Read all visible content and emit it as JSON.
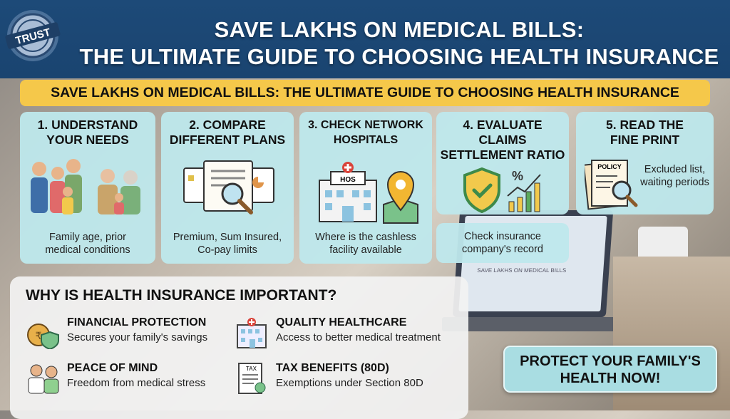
{
  "header": {
    "title_line1": "SAVE LAKHS ON MEDICAL BILLS:",
    "title_line2": "THE ULTIMATE GUIDE TO CHOOSING HEALTH INSURANCE",
    "badge": "TRUST",
    "color": "#1d4a78"
  },
  "banner": {
    "text": "SAVE LAKHS ON MEDICAL BILLS: THE ULTIMATE GUIDE TO CHOOSING HEALTH INSURANCE",
    "color": "#f5c84a"
  },
  "steps": [
    {
      "title": "1. UNDERSTAND YOUR NEEDS",
      "desc": "Family age, prior medical conditions",
      "icon": "family-icon"
    },
    {
      "title": "2. COMPARE DIFFERENT PLANS",
      "desc": "Premium, Sum Insured, Co-pay limits",
      "icon": "compare-documents-icon"
    },
    {
      "title": "3. CHECK NETWORK HOSPITALS",
      "desc": "Where is the cashless facility available",
      "icon": "hospital-location-icon",
      "hospital_sign": "HOS"
    },
    {
      "title": "4. EVALUATE CLAIMS SETTLEMENT RATIO",
      "desc": "Check insurance company's record",
      "icon": "shield-chart-icon"
    },
    {
      "title": "5. READ THE FINE PRINT",
      "desc": "Excluded list, waiting periods",
      "icon": "policy-magnifier-icon",
      "policy_label": "POLICY"
    }
  ],
  "why": {
    "heading": "WHY IS HEALTH INSURANCE IMPORTANT?",
    "items": [
      {
        "title": "FINANCIAL PROTECTION",
        "sub": "Secures your family's savings",
        "icon": "money-bag-shield-icon"
      },
      {
        "title": "QUALITY HEALTHCARE",
        "sub": "Access to better medical treatment",
        "icon": "hospital-icon"
      },
      {
        "title": "PEACE OF MIND",
        "sub": "Freedom from medical stress",
        "icon": "doctor-patient-icon"
      },
      {
        "title": "TAX BENEFITS (80D)",
        "sub": "Exemptions under Section 80D",
        "icon": "tax-document-icon",
        "tax_label": "TAX"
      }
    ]
  },
  "cta": {
    "line1": "PROTECT YOUR FAMILY'S",
    "line2": "HEALTH NOW!"
  },
  "background": {
    "laptop_text": "SAVE LAKHS ON MEDICAL BILLS"
  }
}
